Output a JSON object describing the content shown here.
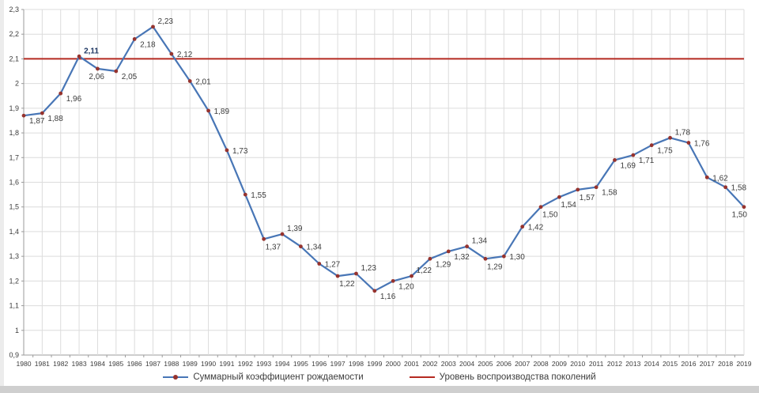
{
  "chart_data": {
    "type": "line",
    "title": "",
    "categories": [
      "1980",
      "1981",
      "1982",
      "1983",
      "1984",
      "1985",
      "1986",
      "1987",
      "1988",
      "1989",
      "1990",
      "1991",
      "1992",
      "1993",
      "1994",
      "1995",
      "1996",
      "1997",
      "1998",
      "1999",
      "2000",
      "2001",
      "2002",
      "2003",
      "2004",
      "2005",
      "2006",
      "2007",
      "2008",
      "2009",
      "2010",
      "2011",
      "2012",
      "2013",
      "2014",
      "2015",
      "2016",
      "2017",
      "2018",
      "2019"
    ],
    "series": [
      {
        "name": "Суммарный коэффициент рождаемости",
        "type": "line-with-markers",
        "line_color": "#4876b6",
        "marker_color": "#96332e",
        "values": [
          1.87,
          1.88,
          1.96,
          2.11,
          2.06,
          2.05,
          2.18,
          2.23,
          2.12,
          2.01,
          1.89,
          1.73,
          1.55,
          1.37,
          1.39,
          1.34,
          1.27,
          1.22,
          1.23,
          1.16,
          1.2,
          1.22,
          1.29,
          1.32,
          1.34,
          1.29,
          1.3,
          1.42,
          1.5,
          1.54,
          1.57,
          1.58,
          1.69,
          1.71,
          1.75,
          1.78,
          1.76,
          1.62,
          1.58,
          1.5
        ],
        "point_labels": [
          "1,87",
          "1,88",
          "1,96",
          "2,11",
          "2,06",
          "2,05",
          "2,18",
          "2,23",
          "2,12",
          "2,01",
          "1,89",
          "1,73",
          "1,55",
          "1,37",
          "1,39",
          "1,34",
          "1,27",
          "1,22",
          "1,23",
          "1,16",
          "1,20",
          "1,22",
          "1,29",
          "1,32",
          "1,34",
          "1,29",
          "1,30",
          "1,42",
          "1,50",
          "1,54",
          "1,57",
          "1,58",
          "1,69",
          "1,71",
          "1,75",
          "1,78",
          "1,76",
          "1,62",
          "1,58",
          "1,50"
        ],
        "label_positions": [
          "rb",
          "rb",
          "rb",
          "ra",
          "b",
          "rb",
          "rb",
          "ra",
          "r",
          "r",
          "r",
          "r",
          "r",
          "br",
          "ra",
          "r",
          "r",
          "br",
          "ra",
          "rb",
          "rb",
          "ra",
          "rb",
          "rb",
          "ra",
          "br",
          "r",
          "r",
          "br",
          "br",
          "br",
          "rb",
          "rb",
          "rb",
          "rb",
          "ra",
          "r",
          "r",
          "r",
          "bl"
        ],
        "highlight_label_index": 3,
        "highlight_label_color": "#1f3864"
      },
      {
        "name": "Уровень воспроизводства поколений",
        "type": "constant-line",
        "line_color": "#b52a21",
        "value": 2.1
      }
    ],
    "ylim": [
      0.9,
      2.3
    ],
    "ytick_step": 0.1,
    "ytick_labels_top_to_bottom": [
      "2,3",
      "2,2",
      "2,1",
      "2",
      "1,9",
      "1,8",
      "1,7",
      "1,6",
      "1,5",
      "1,4",
      "1,3",
      "1,2",
      "1,1",
      "1",
      "0,9"
    ],
    "grid": true,
    "gridline_color": "#dcdcdc",
    "axis_color": "#9b9b9b",
    "tick_label_color": "#3d3d3d",
    "data_label_color": "#3d3d3d",
    "legend_position": "bottom"
  }
}
